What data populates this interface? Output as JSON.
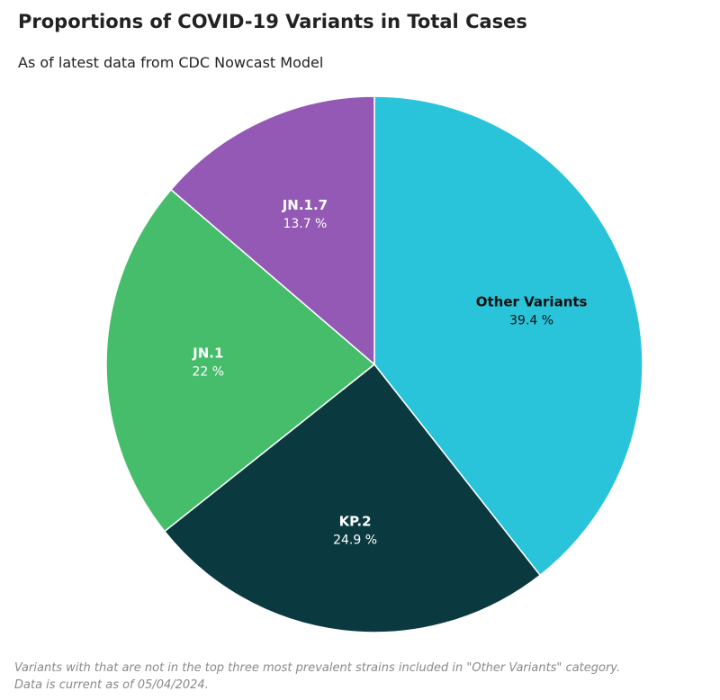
{
  "chart_data": {
    "type": "pie",
    "title": "Proportions of COVID-19 Variants in Total Cases",
    "subtitle": "As of latest data from CDC Nowcast Model",
    "slices": [
      {
        "name": "Other Variants",
        "value": 39.4,
        "label": "39.4 %",
        "color": "#29c4d9",
        "text_color": "#111111"
      },
      {
        "name": "KP.2",
        "value": 24.9,
        "label": "24.9 %",
        "color": "#0a3a40",
        "text_color": "#ffffff"
      },
      {
        "name": "JN.1",
        "value": 22,
        "label": "22 %",
        "color": "#45bd6a",
        "text_color": "#ffffff"
      },
      {
        "name": "JN.1.7",
        "value": 13.7,
        "label": "13.7 %",
        "color": "#9359b4",
        "text_color": "#ffffff"
      }
    ],
    "start_angle": "top",
    "direction": "clockwise",
    "legend": "none"
  },
  "footnote": {
    "line1": "Variants with that are not in the top three most prevalent strains included in \"Other Variants\" category.",
    "line2": "Data is current as of 05/04/2024."
  }
}
